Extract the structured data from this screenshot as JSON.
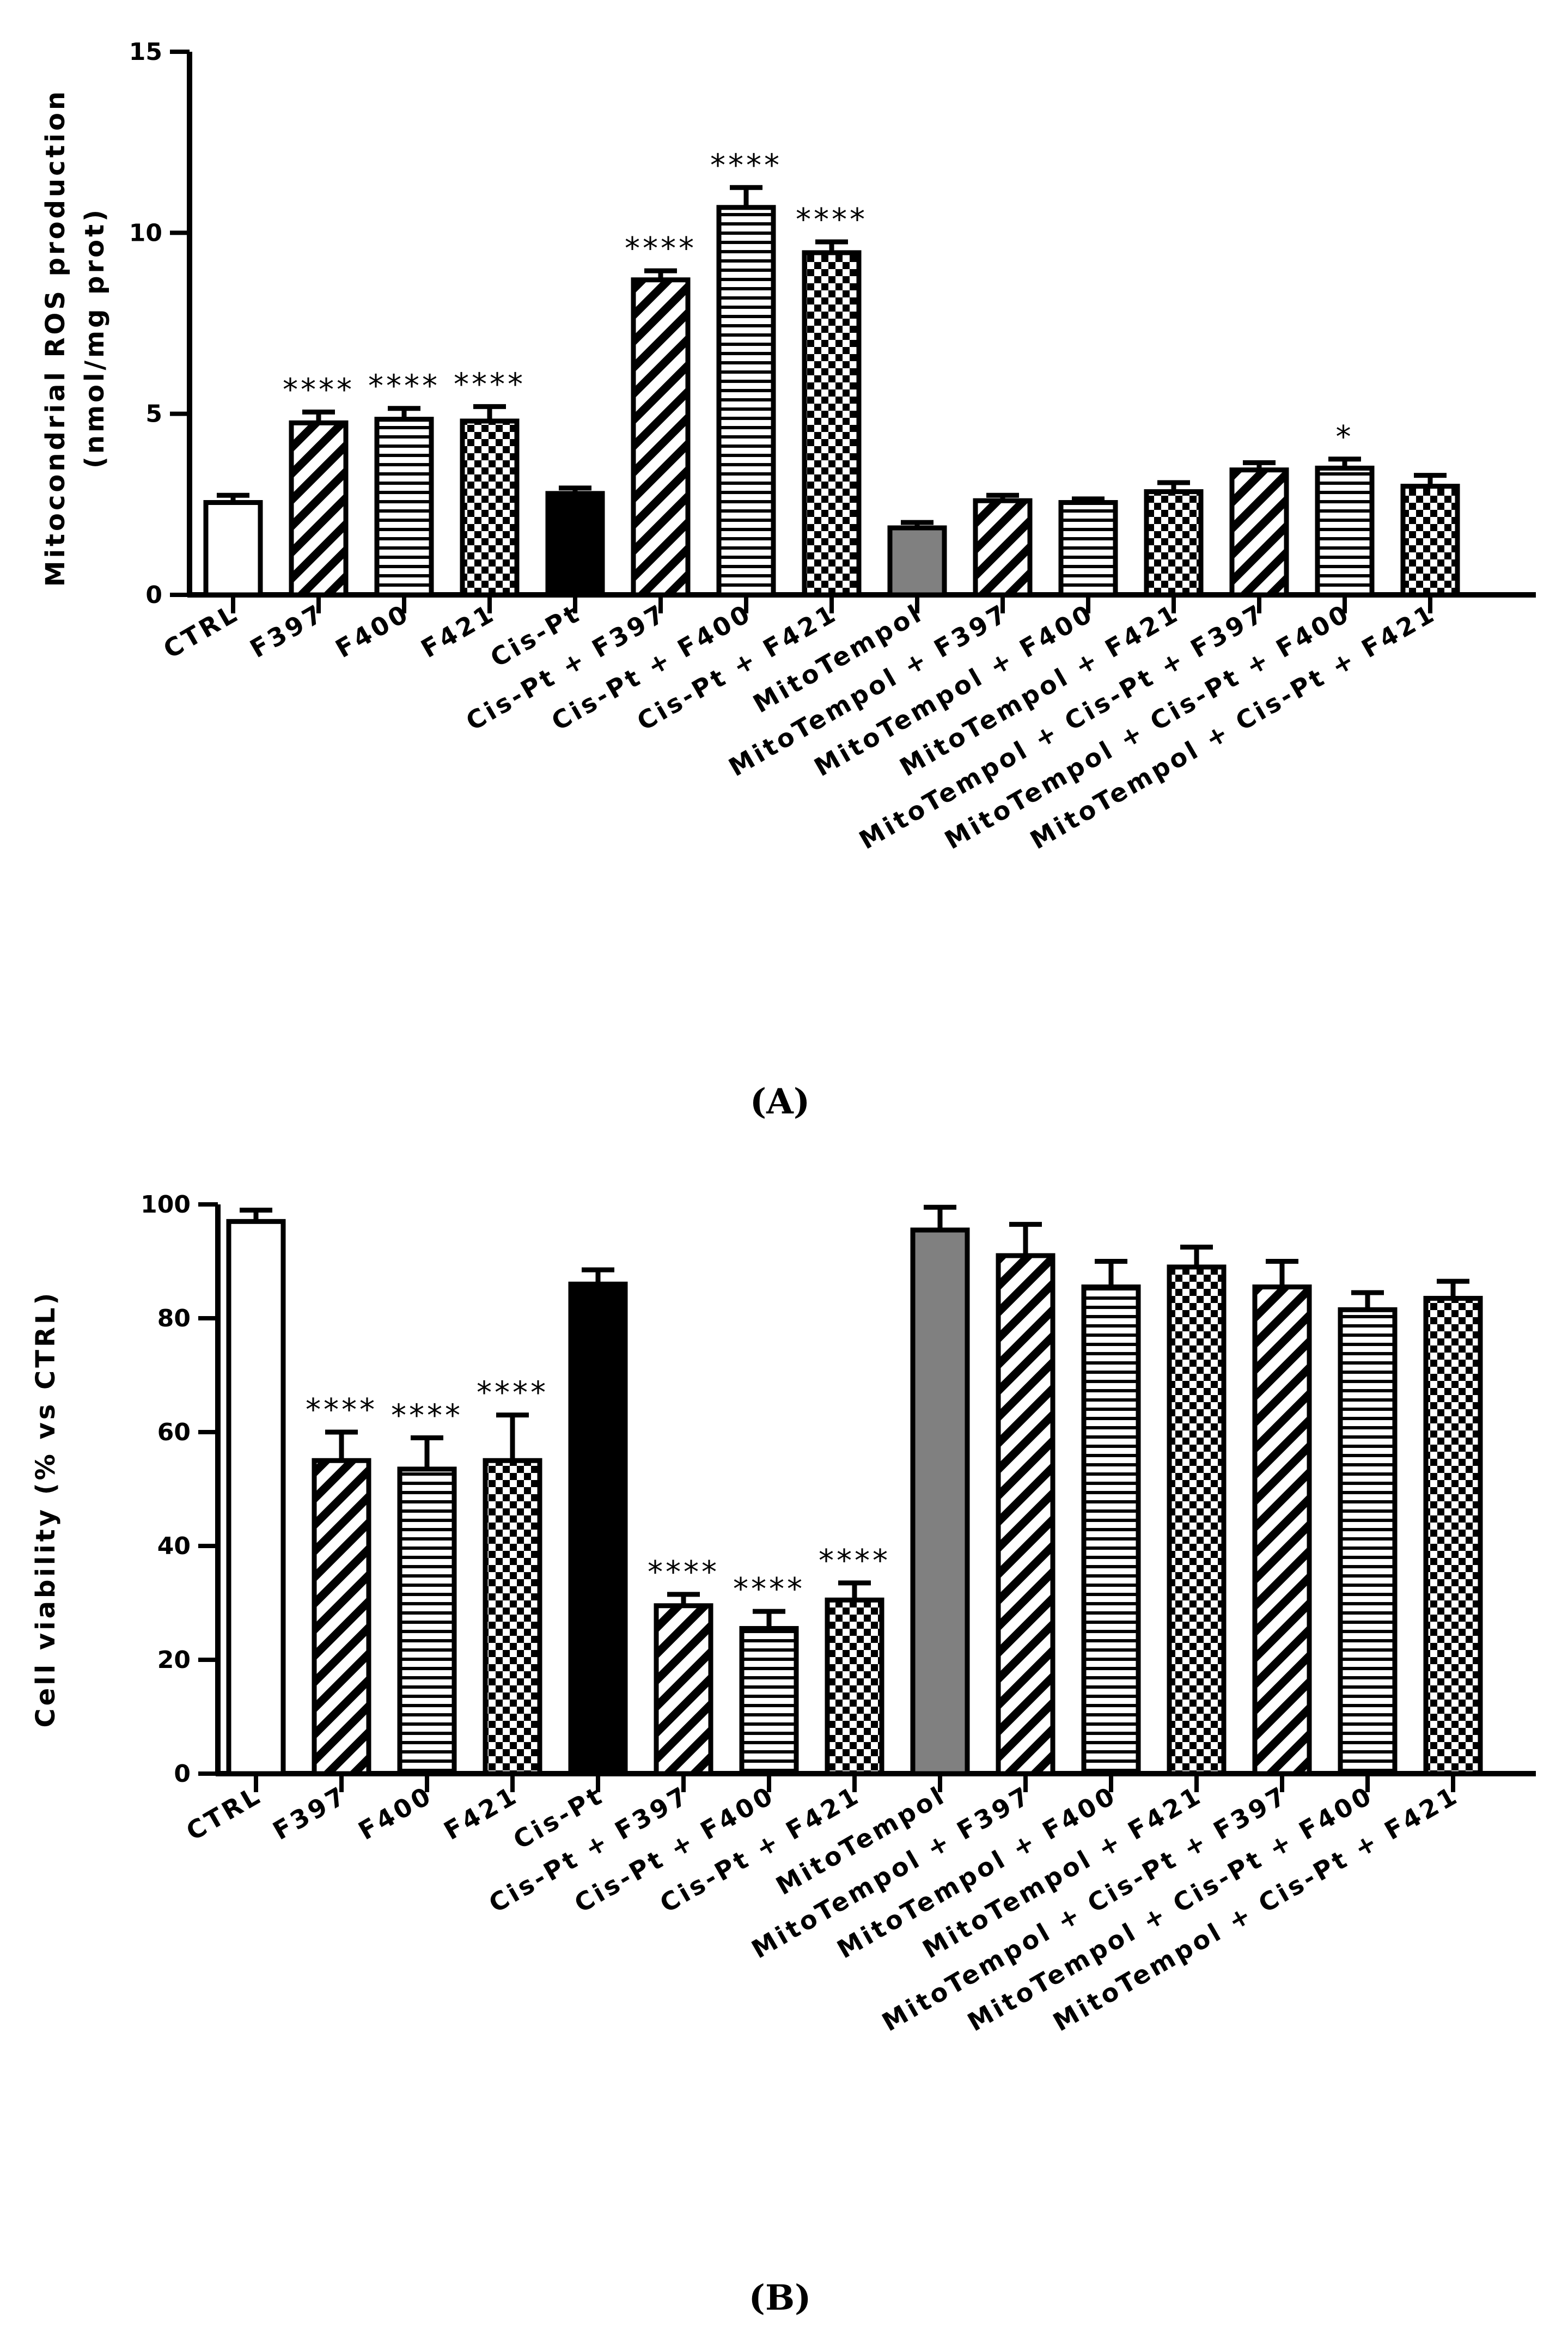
{
  "chart_data": [
    {
      "panel": "A",
      "type": "bar",
      "ylabel_line1": "Mitocondrial ROS production",
      "ylabel_line2": "(nmol/mg prot)",
      "ylim": [
        0,
        15
      ],
      "yticks": [
        0,
        5,
        10,
        15
      ],
      "categories": [
        "CTRL",
        "F397",
        "F400",
        "F421",
        "Cis-Pt",
        "Cis-Pt + F397",
        "Cis-Pt + F400",
        "Cis-Pt + F421",
        "MitoTempol",
        "MitoTempol + F397",
        "MitoTempol + F400",
        "MitoTempol + F421",
        "MitoTempol + Cis-Pt + F397",
        "MitoTempol + Cis-Pt + F400",
        "MitoTempol + Cis-Pt + F421"
      ],
      "fills": [
        "white",
        "diagonal",
        "horizontal",
        "checker",
        "black",
        "diagonal",
        "horizontal",
        "checker",
        "gray",
        "diagonal",
        "horizontal",
        "checker",
        "diagonal",
        "horizontal",
        "checker"
      ],
      "values": [
        2.55,
        4.75,
        4.85,
        4.8,
        2.8,
        8.7,
        10.7,
        9.45,
        1.85,
        2.6,
        2.55,
        2.85,
        3.45,
        3.5,
        3.0
      ],
      "errors": [
        0.2,
        0.3,
        0.3,
        0.4,
        0.15,
        0.25,
        0.55,
        0.3,
        0.15,
        0.15,
        0.1,
        0.25,
        0.2,
        0.25,
        0.3
      ],
      "significance": [
        "",
        "****",
        "****",
        "****",
        "",
        "****",
        "****",
        "****",
        "",
        "",
        "",
        "",
        "",
        "*",
        ""
      ]
    },
    {
      "panel": "B",
      "type": "bar",
      "ylabel": "Cell viability (% vs CTRL)",
      "ylim": [
        0,
        100
      ],
      "yticks": [
        0,
        20,
        40,
        60,
        80,
        100
      ],
      "categories": [
        "CTRL",
        "F397",
        "F400",
        "F421",
        "Cis-Pt",
        "Cis-Pt + F397",
        "Cis-Pt + F400",
        "Cis-Pt + F421",
        "MitoTempol",
        "MitoTempol + F397",
        "MitoTempol + F400",
        "MitoTempol + F421",
        "MitoTempol + Cis-Pt + F397",
        "MitoTempol + Cis-Pt + F400",
        "MitoTempol + Cis-Pt + F421"
      ],
      "fills": [
        "white",
        "diagonal",
        "horizontal",
        "checker",
        "black",
        "diagonal",
        "horizontal",
        "checker",
        "gray",
        "diagonal",
        "horizontal",
        "checker",
        "diagonal",
        "horizontal",
        "checker"
      ],
      "values": [
        97,
        55,
        53.5,
        55,
        86,
        29.5,
        25.5,
        30.5,
        95.5,
        91,
        85.5,
        89,
        85.5,
        81.5,
        83.5
      ],
      "errors": [
        2,
        5,
        5.5,
        8,
        2.5,
        2,
        3,
        3,
        4,
        5.5,
        4.5,
        3.5,
        4.5,
        3,
        3
      ],
      "significance": [
        "",
        "****",
        "****",
        "****",
        "",
        "****",
        "****",
        "****",
        "",
        "",
        "",
        "",
        "",
        "",
        ""
      ]
    }
  ],
  "panel_labels": [
    "(A)",
    "(B)"
  ]
}
